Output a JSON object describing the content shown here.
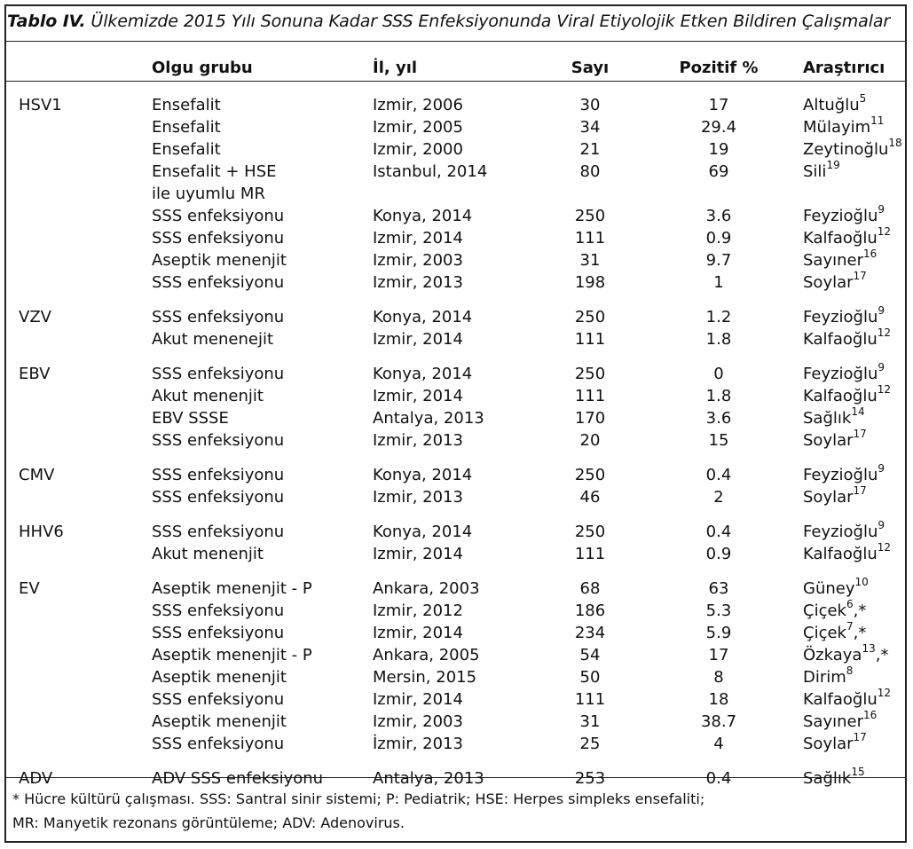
{
  "caption": {
    "label": "Tablo IV.",
    "text": "Ülkemizde 2015 Yılı Sonuna Kadar SSS Enfeksiyonunda Viral Etiyolojik Etken Bildiren Çalışmalar"
  },
  "headers": {
    "virus": "",
    "group": "Olgu grubu",
    "city": "İl, yıl",
    "count": "Sayı",
    "positive": "Pozitif %",
    "researcher": "Araştırıcı"
  },
  "groups": [
    {
      "virus": "HSV1",
      "rows": [
        {
          "group": "Ensefalit",
          "city": "Izmir, 2006",
          "count": "30",
          "positive": "17",
          "researcher": "Altuğlu",
          "ref": "5"
        },
        {
          "group": "Ensefalit",
          "city": "Izmir, 2005",
          "count": "34",
          "positive": "29.4",
          "researcher": "Mülayim",
          "ref": "11"
        },
        {
          "group": "Ensefalit",
          "city": "Izmir, 2000",
          "count": "21",
          "positive": "19",
          "researcher": "Zeytinoğlu",
          "ref": "18"
        },
        {
          "group": "Ensefalit + HSE",
          "city": "Istanbul, 2014",
          "count": "80",
          "positive": "69",
          "researcher": "Sili",
          "ref": "19"
        },
        {
          "group": "ile uyumlu MR",
          "city": "",
          "count": "",
          "positive": "",
          "researcher": "",
          "ref": ""
        },
        {
          "group": "SSS enfeksiyonu",
          "city": "Konya, 2014",
          "count": "250",
          "positive": "3.6",
          "researcher": "Feyzioğlu",
          "ref": "9"
        },
        {
          "group": "SSS enfeksiyonu",
          "city": "Izmir, 2014",
          "count": "111",
          "positive": "0.9",
          "researcher": "Kalfaoğlu",
          "ref": "12"
        },
        {
          "group": "Aseptik menenjit",
          "city": "Izmir, 2003",
          "count": "31",
          "positive": "9.7",
          "researcher": "Sayıner",
          "ref": "16"
        },
        {
          "group": "SSS enfeksiyonu",
          "city": "Izmir, 2013",
          "count": "198",
          "positive": "1",
          "researcher": "Soylar",
          "ref": "17"
        }
      ]
    },
    {
      "virus": "VZV",
      "rows": [
        {
          "group": "SSS enfeksiyonu",
          "city": "Konya, 2014",
          "count": "250",
          "positive": "1.2",
          "researcher": "Feyzioğlu",
          "ref": "9"
        },
        {
          "group": "Akut menenejit",
          "city": "Izmir, 2014",
          "count": "111",
          "positive": "1.8",
          "researcher": "Kalfaoğlu",
          "ref": "12"
        }
      ]
    },
    {
      "virus": "EBV",
      "rows": [
        {
          "group": "SSS enfeksiyonu",
          "city": "Konya, 2014",
          "count": "250",
          "positive": "0",
          "researcher": "Feyzioğlu",
          "ref": "9"
        },
        {
          "group": "Akut menenjit",
          "city": "Izmir, 2014",
          "count": "111",
          "positive": "1.8",
          "researcher": "Kalfaoğlu",
          "ref": "12"
        },
        {
          "group": "EBV SSSE",
          "city": "Antalya, 2013",
          "count": "170",
          "positive": "3.6",
          "researcher": "Sağlık",
          "ref": "14"
        },
        {
          "group": "SSS enfeksiyonu",
          "city": "Izmir, 2013",
          "count": "20",
          "positive": "15",
          "researcher": "Soylar",
          "ref": "17"
        }
      ]
    },
    {
      "virus": "CMV",
      "rows": [
        {
          "group": "SSS enfeksiyonu",
          "city": "Konya, 2014",
          "count": "250",
          "positive": "0.4",
          "researcher": "Feyzioğlu",
          "ref": "9"
        },
        {
          "group": "SSS enfeksiyonu",
          "city": "Izmir, 2013",
          "count": "46",
          "positive": "2",
          "researcher": "Soylar",
          "ref": "17"
        }
      ]
    },
    {
      "virus": "HHV6",
      "rows": [
        {
          "group": "SSS enfeksiyonu",
          "city": "Konya, 2014",
          "count": "250",
          "positive": "0.4",
          "researcher": "Feyzioğlu",
          "ref": "9"
        },
        {
          "group": "Akut menenjit",
          "city": "Izmir, 2014",
          "count": "111",
          "positive": "0.9",
          "researcher": "Kalfaoğlu",
          "ref": "12"
        }
      ]
    },
    {
      "virus": "EV",
      "rows": [
        {
          "group": "Aseptik menenjit - P",
          "city": "Ankara, 2003",
          "count": "68",
          "positive": "63",
          "researcher": "Güney",
          "ref": "10"
        },
        {
          "group": "SSS enfeksiyonu",
          "city": "Izmir, 2012",
          "count": "186",
          "positive": "5.3",
          "researcher": "Çiçek",
          "ref": "6",
          "suffix": ",*"
        },
        {
          "group": "SSS enfeksiyonu",
          "city": "Izmir, 2014",
          "count": "234",
          "positive": "5.9",
          "researcher": "Çiçek",
          "ref": "7",
          "suffix": ",*"
        },
        {
          "group": "Aseptik menenjit - P",
          "city": "Ankara, 2005",
          "count": "54",
          "positive": "17",
          "researcher": "Özkaya",
          "ref": "13",
          "suffix": ",*"
        },
        {
          "group": "Aseptik menenjit",
          "city": "Mersin, 2015",
          "count": "50",
          "positive": "8",
          "researcher": "Dirim",
          "ref": "8"
        },
        {
          "group": "SSS enfeksiyonu",
          "city": "Izmir, 2014",
          "count": "111",
          "positive": "18",
          "researcher": "Kalfaoğlu",
          "ref": "12"
        },
        {
          "group": "Aseptik menenjit",
          "city": "Izmir, 2003",
          "count": "31",
          "positive": "38.7",
          "researcher": "Sayıner",
          "ref": "16"
        },
        {
          "group": "SSS enfeksiyonu",
          "city": "İzmir, 2013",
          "count": "25",
          "positive": "4",
          "researcher": "Soylar",
          "ref": "17"
        }
      ]
    },
    {
      "virus": "ADV",
      "rows": [
        {
          "group": "ADV SSS enfeksiyonu",
          "city": "Antalya, 2013",
          "count": "253",
          "positive": "0.4",
          "researcher": "Sağlık",
          "ref": "15"
        }
      ]
    }
  ],
  "footnotes": [
    "* Hücre kültürü çalışması. SSS: Santral sinir sistemi; P: Pediatrik; HSE: Herpes simpleks ensefaliti;",
    "MR: Manyetik rezonans görüntüleme; ADV: Adenovirus."
  ]
}
